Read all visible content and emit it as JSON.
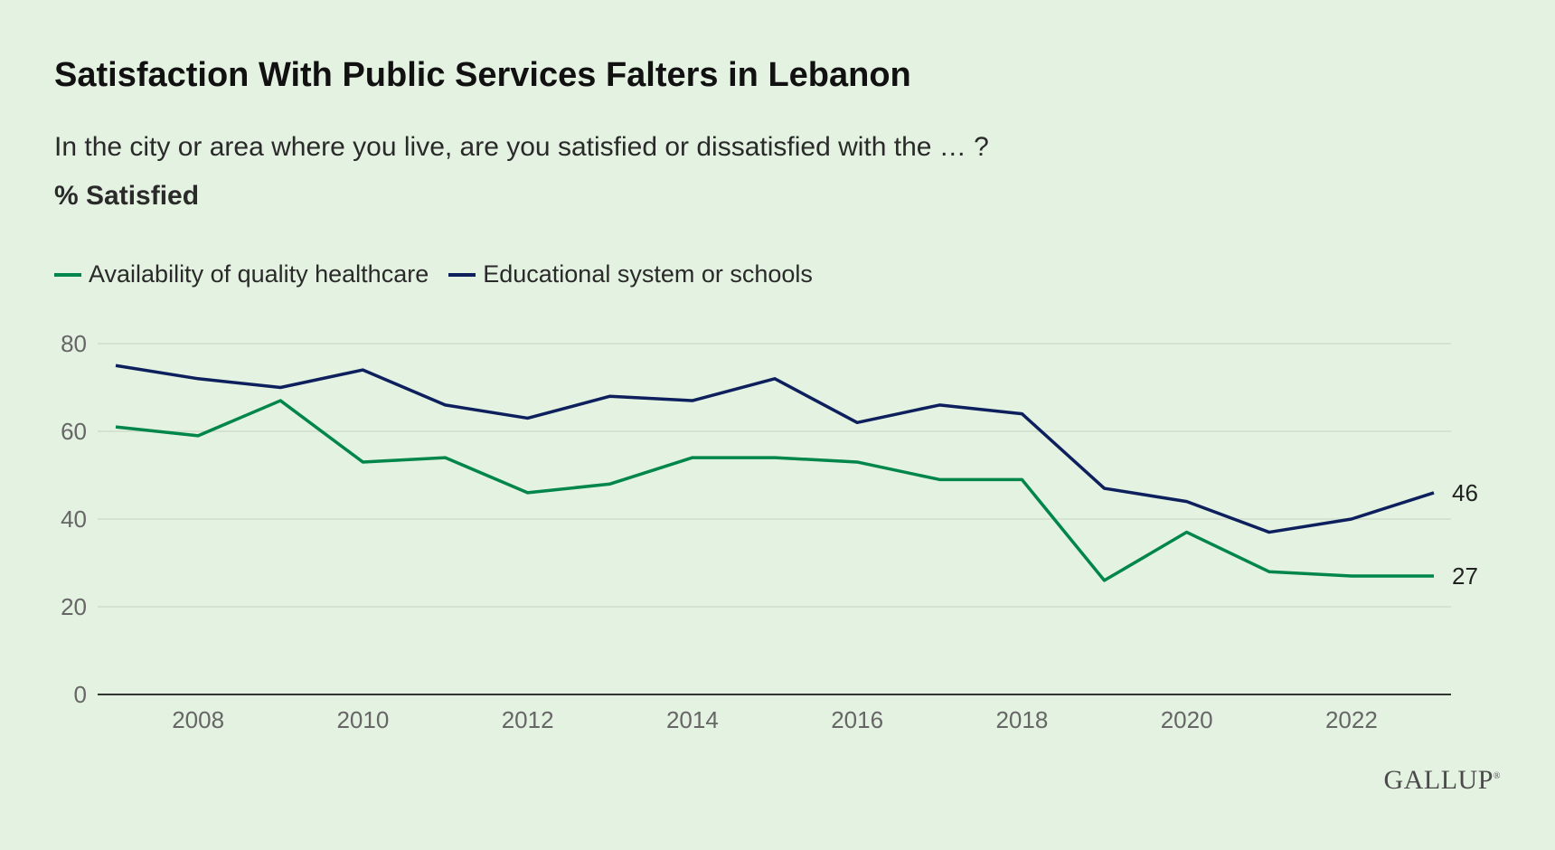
{
  "header": {
    "title": "Satisfaction With Public Services Falters in Lebanon",
    "subtitle": "In the city or area where you live, are you satisfied or dissatisfied with the … ?",
    "measure": "% Satisfied"
  },
  "brand": {
    "logo_text": "GALLUP"
  },
  "colors": {
    "healthcare": "#00864a",
    "education": "#0d1f5c",
    "grid": "#cfdcc9",
    "axis": "#333333",
    "tick_text": "#666666"
  },
  "chart_data": {
    "type": "line",
    "x": [
      2007,
      2008,
      2009,
      2010,
      2011,
      2012,
      2013,
      2014,
      2015,
      2016,
      2017,
      2018,
      2019,
      2020,
      2021,
      2022,
      2023
    ],
    "x_ticks": [
      2008,
      2010,
      2012,
      2014,
      2016,
      2018,
      2020,
      2022
    ],
    "y_ticks": [
      0,
      20,
      40,
      60,
      80
    ],
    "xlim": [
      2007,
      2023
    ],
    "ylim": [
      0,
      80
    ],
    "grid": true,
    "legend_position": "top-left",
    "series": [
      {
        "name": "Availability of quality healthcare",
        "color": "#00864a",
        "values": [
          61,
          59,
          67,
          53,
          54,
          46,
          48,
          54,
          54,
          53,
          49,
          49,
          26,
          37,
          28,
          27,
          27
        ],
        "end_label": "27"
      },
      {
        "name": "Educational system or schools",
        "color": "#0d1f5c",
        "values": [
          75,
          72,
          70,
          74,
          66,
          63,
          68,
          67,
          72,
          62,
          66,
          64,
          47,
          44,
          37,
          40,
          46
        ],
        "end_label": "46"
      }
    ]
  }
}
